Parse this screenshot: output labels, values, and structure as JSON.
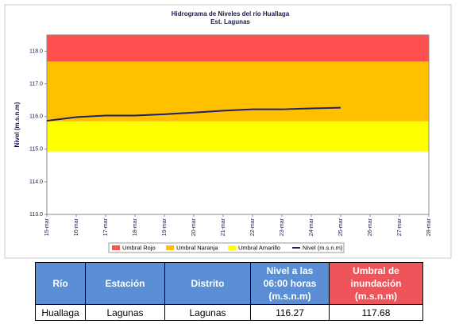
{
  "chart_data": {
    "type": "line",
    "title": "Hidrograma de Niveles del río Huallaga",
    "subtitle": "Est. Lagunas",
    "y_label": "Nivel (m.s.n.m)",
    "categories": [
      "15-mar",
      "16-mar",
      "17-mar",
      "18-mar",
      "19-mar",
      "20-mar",
      "21-mar",
      "22-mar",
      "23-mar",
      "24-mar",
      "25-mar",
      "26-mar",
      "27-mar",
      "28-mar"
    ],
    "thresholds": [
      {
        "name": "Umbral Rojo",
        "color": "#ff5050",
        "value": 117.68
      },
      {
        "name": "Umbral Naranja",
        "color": "#ffc000",
        "value": 115.85
      },
      {
        "name": "Umbral Amarillo",
        "color": "#ffff00",
        "value": 114.93
      }
    ],
    "series": [
      {
        "name": "Nivel (m.s.n.m)",
        "color": "#1f1f6e",
        "values": [
          115.87,
          115.98,
          116.03,
          116.03,
          116.07,
          116.12,
          116.18,
          116.22,
          116.22,
          116.25,
          116.27,
          null,
          null,
          null
        ]
      }
    ],
    "ylim": [
      113,
      118.5
    ],
    "yticks": [
      {
        "value": 113,
        "label": "113.0"
      },
      {
        "value": 114,
        "label": "114.0"
      },
      {
        "value": 115,
        "label": "115.0"
      },
      {
        "value": 116,
        "label": "116.0"
      },
      {
        "value": 117,
        "label": "117.0"
      },
      {
        "value": 118,
        "label": "118.0"
      }
    ]
  },
  "table": {
    "header": [
      "Río",
      "Estación",
      "Distrito",
      "Nivel a las 06:00 horas (m.s.n.m)",
      "Umbral de inundación (m.s.n.m)"
    ],
    "rows": [
      [
        "Huallaga",
        "Lagunas",
        "Lagunas",
        "116.27",
        "117.68"
      ]
    ]
  }
}
